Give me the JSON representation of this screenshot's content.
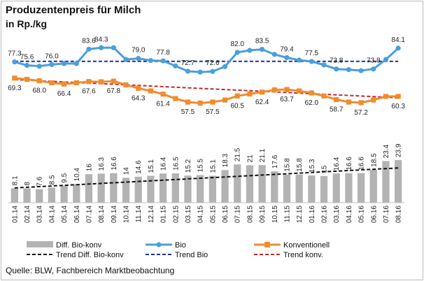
{
  "chart_data": {
    "type": "line",
    "title": "Produzentenpreis für Milch",
    "unit": "in Rp./kg",
    "source": "Quelle: BLW, Fachbereich Marktbeobachtung",
    "x": [
      "01.14",
      "02.14",
      "03.14",
      "04.14",
      "05.14",
      "06.14",
      "07.14",
      "08.14",
      "09.14",
      "10.14",
      "11.14",
      "12.14",
      "01.15",
      "02.15",
      "03.15",
      "04.15",
      "05.15",
      "06.15",
      "07.15",
      "08.15",
      "09.15",
      "10.15",
      "11.15",
      "12.15",
      "01.16",
      "02.16",
      "03.16",
      "04.16",
      "05.16",
      "06.16",
      "07.16",
      "08.16"
    ],
    "series": [
      {
        "name": "Bio",
        "type": "line",
        "color": "#4a9fdb",
        "values": [
          77.3,
          75.6,
          75.2,
          76.0,
          76.5,
          76.5,
          83.6,
          84.3,
          84.3,
          78.5,
          79.0,
          78.0,
          77.8,
          75.3,
          72.7,
          72.3,
          72.6,
          75.0,
          82.0,
          83.0,
          83.5,
          81.0,
          79.4,
          78.2,
          77.5,
          75.8,
          73.8,
          73.5,
          73.0,
          73.8,
          78.5,
          84.1
        ],
        "labels": [
          "77.3",
          "75.6",
          "",
          "76.0",
          "",
          "",
          "83.6",
          "84.3",
          "",
          "",
          "79.0",
          "",
          "77.8",
          "",
          "72.7",
          "",
          "72.6",
          "",
          "82.0",
          "",
          "83.5",
          "",
          "79.4",
          "",
          "77.5",
          "",
          "73.8",
          "",
          "",
          "73.8",
          "",
          "84.1"
        ]
      },
      {
        "name": "Konventionell",
        "type": "line",
        "color": "#f08c2e",
        "values": [
          69.3,
          68.7,
          68.0,
          67.0,
          66.4,
          67.0,
          67.6,
          67.5,
          67.8,
          66.0,
          64.3,
          63.0,
          61.4,
          59.2,
          57.5,
          57.0,
          57.5,
          58.5,
          60.5,
          61.5,
          62.4,
          63.5,
          63.7,
          63.0,
          62.0,
          60.5,
          58.7,
          57.5,
          57.2,
          58.5,
          60.3,
          60.3
        ],
        "labels": [
          "69.3",
          "",
          "68.0",
          "",
          "66.4",
          "",
          "67.6",
          "",
          "67.8",
          "",
          "64.3",
          "",
          "61.4",
          "",
          "57.5",
          "",
          "57.5",
          "",
          "60.5",
          "",
          "62.4",
          "",
          "63.7",
          "",
          "62.0",
          "",
          "58.7",
          "",
          "57.2",
          "",
          "",
          "60.3"
        ]
      },
      {
        "name": "Diff. Bio-konv",
        "type": "bar",
        "color": "#b3b3b3",
        "values": [
          8.1,
          8.0,
          7.6,
          8.5,
          9.5,
          10.4,
          16.0,
          16.3,
          16.6,
          14.0,
          14.6,
          15.1,
          16.4,
          16.5,
          15.2,
          15.5,
          15.1,
          18.3,
          21.5,
          21.0,
          21.1,
          17.6,
          15.8,
          15.8,
          15.3,
          15.0,
          16.4,
          16.6,
          16.6,
          18.5,
          23.4,
          23.9
        ]
      },
      {
        "name": "Trend Bio",
        "type": "trend",
        "color": "#1f2f9e",
        "from": 77.6,
        "to": 77.6
      },
      {
        "name": "Trend konv.",
        "type": "trend",
        "color": "#c62828",
        "from": 68.6,
        "to": 59.6
      },
      {
        "name": "Trend Diff. Bio-konv",
        "type": "trend",
        "color": "#111111",
        "from": 8.3,
        "to": 19.5
      }
    ],
    "legend": [
      {
        "name": "Diff. Bio-konv",
        "kind": "bar",
        "color": "#b3b3b3"
      },
      {
        "name": "Bio",
        "kind": "line-dot",
        "color": "#4a9fdb"
      },
      {
        "name": "Konventionell",
        "kind": "line-square",
        "color": "#f08c2e"
      },
      {
        "name": "Trend Diff. Bio-konv",
        "kind": "dash",
        "color": "#111111"
      },
      {
        "name": "Trend Bio",
        "kind": "dash",
        "color": "#1f2f9e"
      },
      {
        "name": "Trend konv.",
        "kind": "dash",
        "color": "#c62828"
      }
    ],
    "legend_position": "bottom",
    "grid": false
  }
}
